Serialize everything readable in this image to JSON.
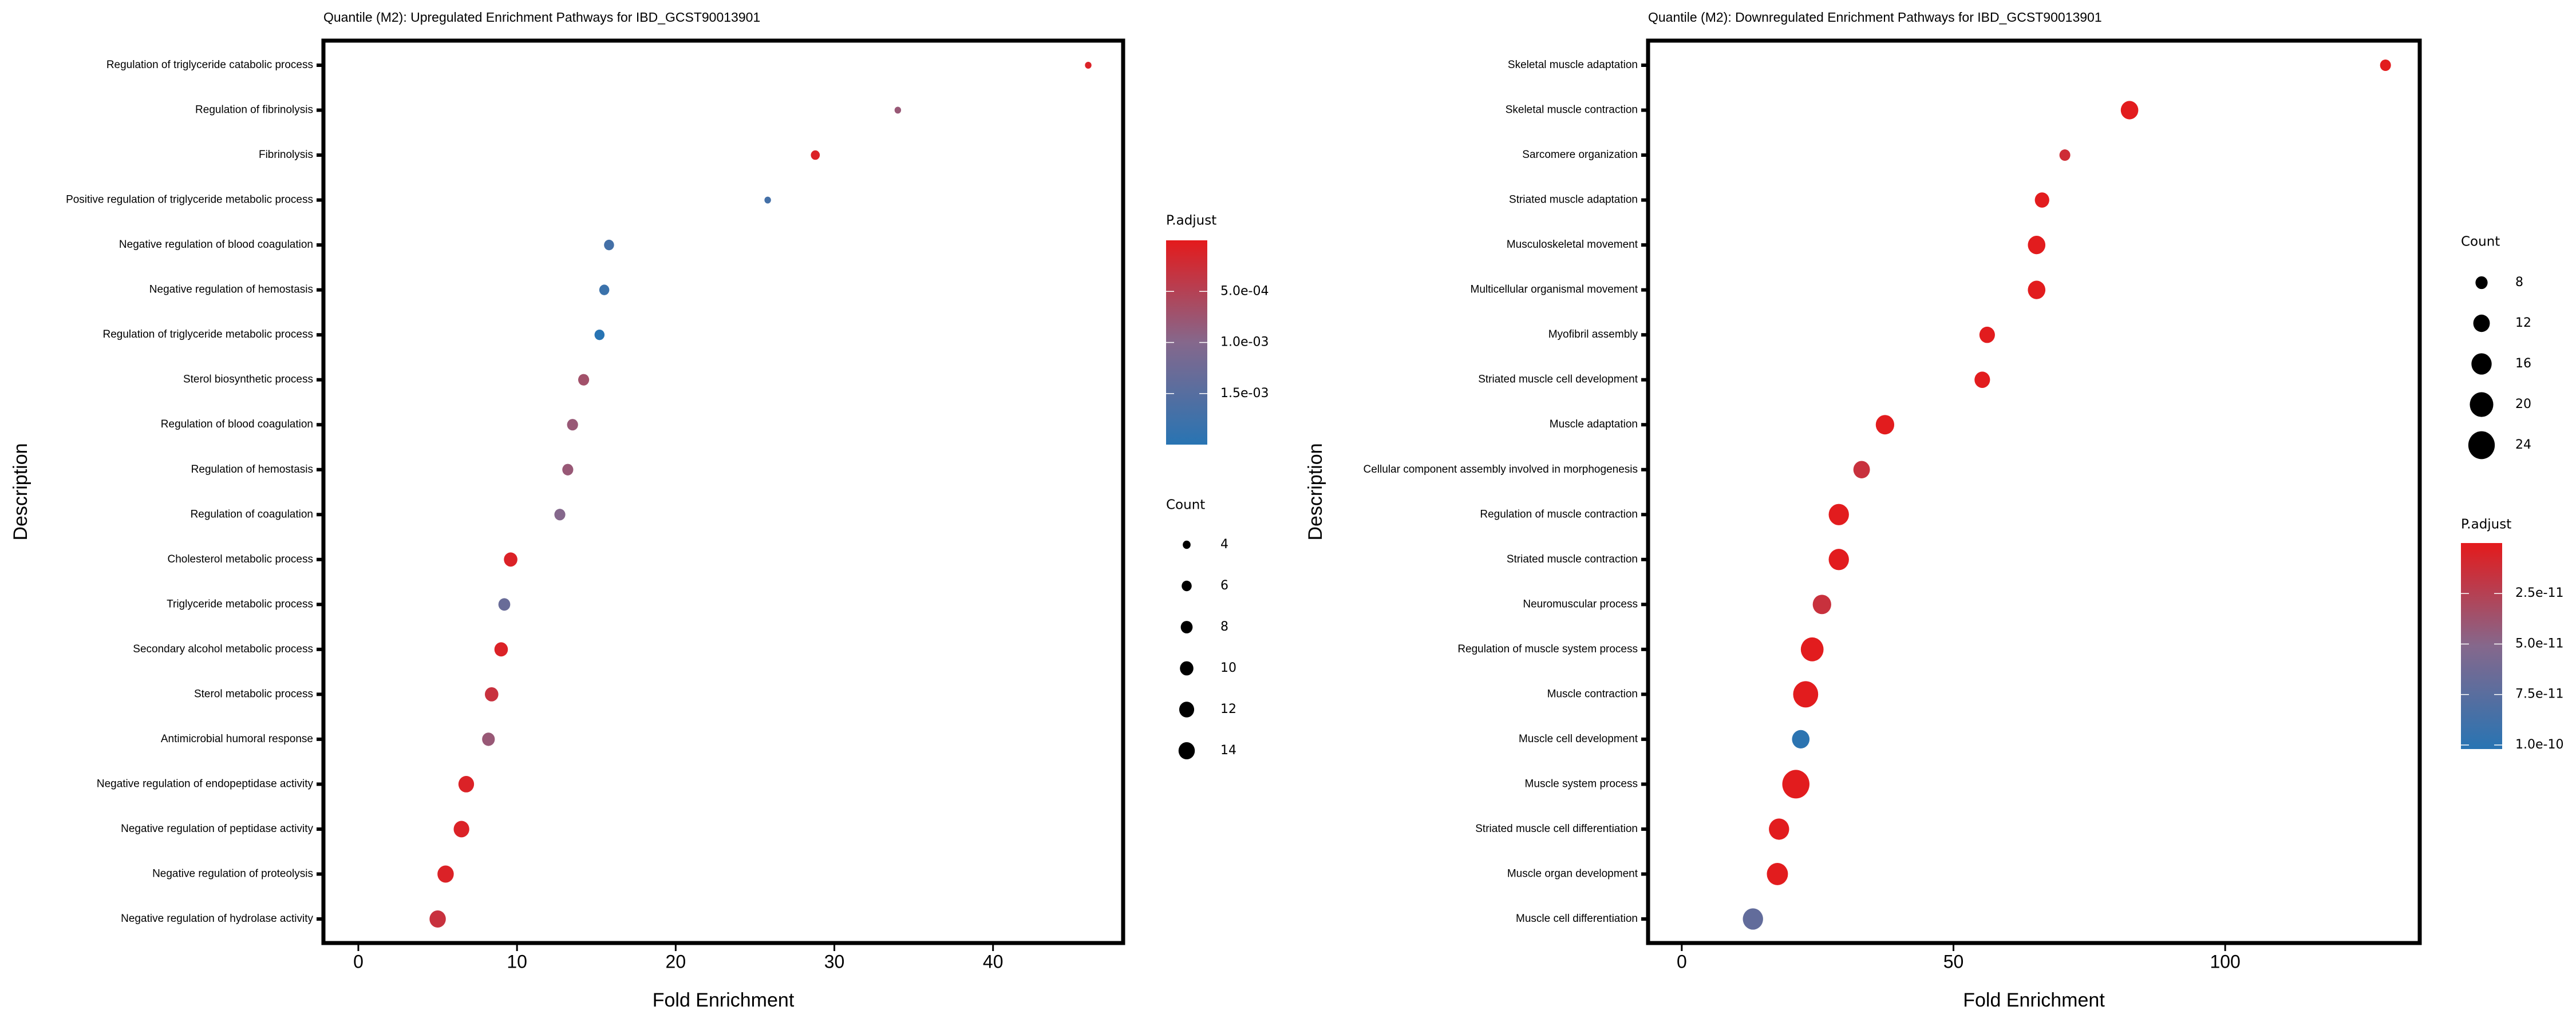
{
  "chart_data": [
    {
      "type": "scatter",
      "subtype": "dot-plot",
      "title": "Quantile (M2): Upregulated Enrichment Pathways for IBD_GCST90013901",
      "xlabel": "Fold Enrichment",
      "ylabel": "Description",
      "xlim": [
        -2.2,
        48.2
      ],
      "xticks": [
        0,
        10,
        20,
        30,
        40
      ],
      "grid": false,
      "legend_position": "right",
      "color_legend": {
        "title": "P.adjust",
        "low_color": "#e41a1c",
        "high_color": "#2874b3",
        "range": [
          0.0,
          0.002
        ],
        "ticks": [
          {
            "label": "5.0e-04",
            "value": 0.0005
          },
          {
            "label": "1.0e-03",
            "value": 0.001
          },
          {
            "label": "1.5e-03",
            "value": 0.0015
          }
        ]
      },
      "size_legend": {
        "title": "Count",
        "values": [
          4,
          6,
          8,
          10,
          12,
          14
        ]
      },
      "points": [
        {
          "description": "Regulation of triglyceride catabolic process",
          "fold_enrichment": 46.0,
          "count": 3,
          "p_adjust": 0.0001
        },
        {
          "description": "Regulation of fibrinolysis",
          "fold_enrichment": 34.0,
          "count": 3,
          "p_adjust": 0.0008
        },
        {
          "description": "Fibrinolysis",
          "fold_enrichment": 28.8,
          "count": 5,
          "p_adjust": 0.0001
        },
        {
          "description": "Positive regulation of triglyceride metabolic process",
          "fold_enrichment": 25.8,
          "count": 3,
          "p_adjust": 0.0017
        },
        {
          "description": "Negative regulation of blood coagulation",
          "fold_enrichment": 15.8,
          "count": 6,
          "p_adjust": 0.0017
        },
        {
          "description": "Negative regulation of hemostasis",
          "fold_enrichment": 15.5,
          "count": 6,
          "p_adjust": 0.0018
        },
        {
          "description": "Regulation of triglyceride metabolic process",
          "fold_enrichment": 15.2,
          "count": 6,
          "p_adjust": 0.002
        },
        {
          "description": "Sterol biosynthetic process",
          "fold_enrichment": 14.2,
          "count": 7,
          "p_adjust": 0.0007
        },
        {
          "description": "Regulation of blood coagulation",
          "fold_enrichment": 13.5,
          "count": 7,
          "p_adjust": 0.0008
        },
        {
          "description": "Regulation of hemostasis",
          "fold_enrichment": 13.2,
          "count": 7,
          "p_adjust": 0.0008
        },
        {
          "description": "Regulation of coagulation",
          "fold_enrichment": 12.7,
          "count": 7,
          "p_adjust": 0.001
        },
        {
          "description": "Cholesterol metabolic process",
          "fold_enrichment": 9.6,
          "count": 10,
          "p_adjust": 0.0001
        },
        {
          "description": "Triglyceride metabolic process",
          "fold_enrichment": 9.2,
          "count": 8,
          "p_adjust": 0.0013
        },
        {
          "description": "Secondary alcohol metabolic process",
          "fold_enrichment": 9.0,
          "count": 10,
          "p_adjust": 0.0001
        },
        {
          "description": "Sterol metabolic process",
          "fold_enrichment": 8.4,
          "count": 10,
          "p_adjust": 0.0003
        },
        {
          "description": "Antimicrobial humoral response",
          "fold_enrichment": 8.2,
          "count": 9,
          "p_adjust": 0.0008
        },
        {
          "description": "Negative regulation of endopeptidase activity",
          "fold_enrichment": 6.8,
          "count": 13,
          "p_adjust": 0.0001
        },
        {
          "description": "Negative regulation of peptidase activity",
          "fold_enrichment": 6.5,
          "count": 13,
          "p_adjust": 0.0001
        },
        {
          "description": "Negative regulation of proteolysis",
          "fold_enrichment": 5.5,
          "count": 14,
          "p_adjust": 0.0001
        },
        {
          "description": "Negative regulation of hydrolase activity",
          "fold_enrichment": 5.0,
          "count": 14,
          "p_adjust": 0.0003
        }
      ]
    },
    {
      "type": "scatter",
      "subtype": "dot-plot",
      "title": "Quantile (M2): Downregulated Enrichment Pathways for IBD_GCST90013901",
      "xlabel": "Fold Enrichment",
      "ylabel": "Description",
      "xlim": [
        -6.2,
        135.8
      ],
      "xticks": [
        0,
        50,
        100
      ],
      "grid": false,
      "legend_position": "right",
      "size_legend": {
        "title": "Count",
        "values": [
          8,
          12,
          16,
          20,
          24
        ]
      },
      "color_legend": {
        "title": "P.adjust",
        "low_color": "#e41a1c",
        "high_color": "#2874b3",
        "range": [
          0.0,
          1.02e-10
        ],
        "ticks": [
          {
            "label": "2.5e-11",
            "value": 2.5e-11
          },
          {
            "label": "5.0e-11",
            "value": 5e-11
          },
          {
            "label": "7.5e-11",
            "value": 7.5e-11
          },
          {
            "label": "1.0e-10",
            "value": 1e-10
          }
        ]
      },
      "points": [
        {
          "description": "Skeletal muscle adaptation",
          "fold_enrichment": 129.5,
          "count": 7,
          "p_adjust": 1e-12
        },
        {
          "description": "Skeletal muscle contraction",
          "fold_enrichment": 82.4,
          "count": 13,
          "p_adjust": 1e-12
        },
        {
          "description": "Sarcomere organization",
          "fold_enrichment": 70.5,
          "count": 7,
          "p_adjust": 1.2e-11
        },
        {
          "description": "Striated muscle adaptation",
          "fold_enrichment": 66.3,
          "count": 10,
          "p_adjust": 1e-12
        },
        {
          "description": "Musculoskeletal movement",
          "fold_enrichment": 65.3,
          "count": 13,
          "p_adjust": 1e-12
        },
        {
          "description": "Multicellular organismal movement",
          "fold_enrichment": 65.3,
          "count": 13,
          "p_adjust": 1e-12
        },
        {
          "description": "Myofibril assembly",
          "fold_enrichment": 56.2,
          "count": 11,
          "p_adjust": 1e-12
        },
        {
          "description": "Striated muscle cell development",
          "fold_enrichment": 55.3,
          "count": 11,
          "p_adjust": 1e-12
        },
        {
          "description": "Muscle adaptation",
          "fold_enrichment": 37.4,
          "count": 14,
          "p_adjust": 1e-12
        },
        {
          "description": "Cellular component assembly involved in morphogenesis",
          "fold_enrichment": 33.1,
          "count": 12,
          "p_adjust": 1.5e-11
        },
        {
          "description": "Regulation of muscle contraction",
          "fold_enrichment": 28.9,
          "count": 16,
          "p_adjust": 1e-12
        },
        {
          "description": "Striated muscle contraction",
          "fold_enrichment": 28.9,
          "count": 16,
          "p_adjust": 1e-12
        },
        {
          "description": "Neuromuscular process",
          "fold_enrichment": 25.8,
          "count": 14,
          "p_adjust": 1.5e-11
        },
        {
          "description": "Regulation of muscle system process",
          "fold_enrichment": 24.0,
          "count": 19,
          "p_adjust": 1e-12
        },
        {
          "description": "Muscle contraction",
          "fold_enrichment": 22.8,
          "count": 22,
          "p_adjust": 1e-12
        },
        {
          "description": "Muscle cell development",
          "fold_enrichment": 21.9,
          "count": 13,
          "p_adjust": 1e-10
        },
        {
          "description": "Muscle system process",
          "fold_enrichment": 21.0,
          "count": 25,
          "p_adjust": 1e-12
        },
        {
          "description": "Striated muscle cell differentiation",
          "fold_enrichment": 17.9,
          "count": 16,
          "p_adjust": 1e-12
        },
        {
          "description": "Muscle organ development",
          "fold_enrichment": 17.6,
          "count": 17,
          "p_adjust": 1e-12
        },
        {
          "description": "Muscle cell differentiation",
          "fold_enrichment": 13.1,
          "count": 16,
          "p_adjust": 7e-11
        }
      ]
    }
  ]
}
